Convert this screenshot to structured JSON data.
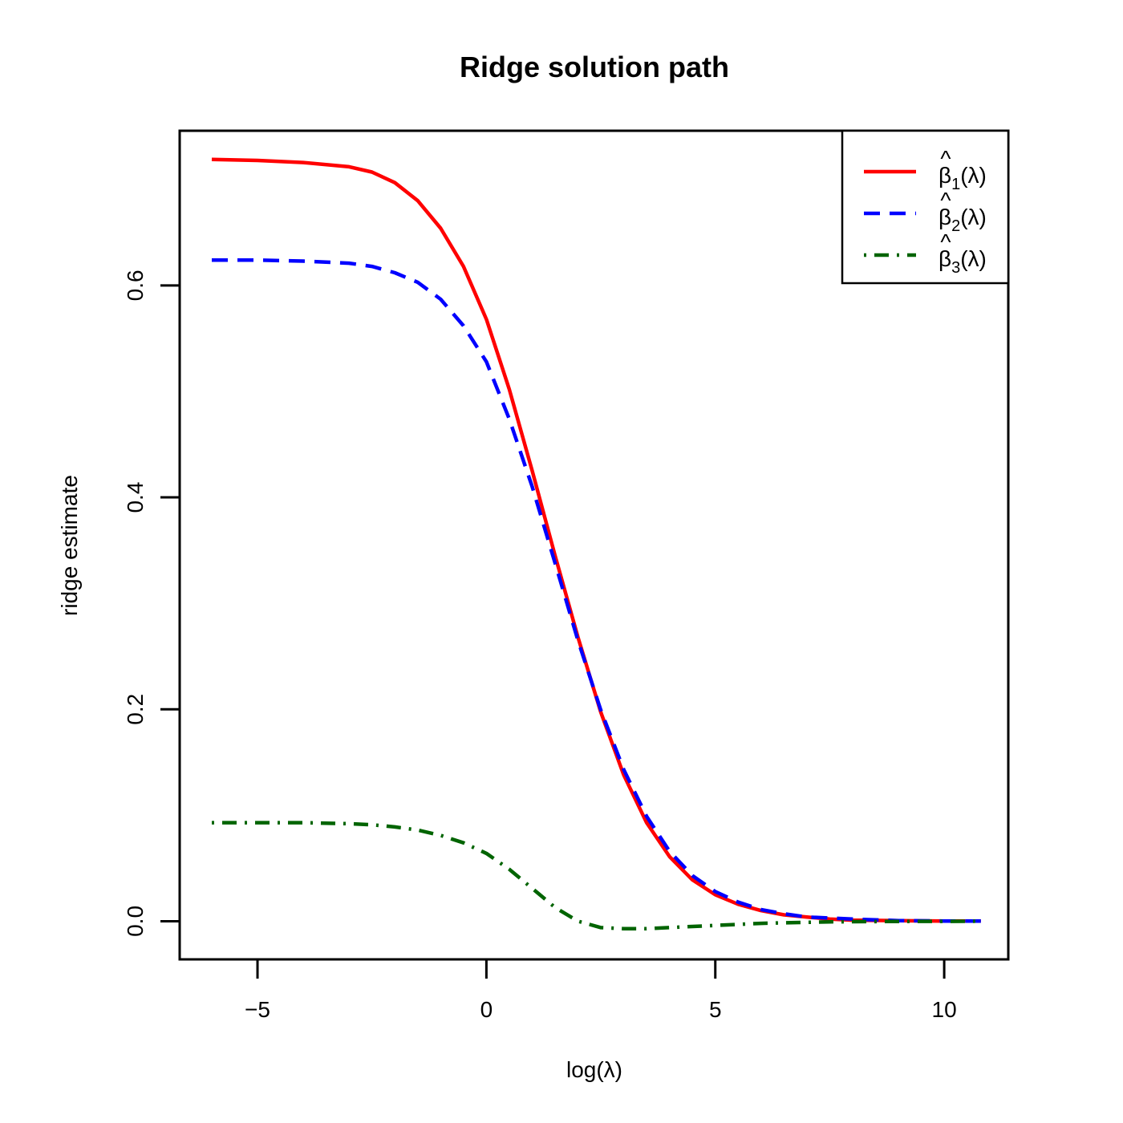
{
  "chart_data": {
    "type": "line",
    "title": "Ridge solution path",
    "xlabel": "log(λ)",
    "ylabel": "ridge estimate",
    "xlim": [
      -6.7,
      11.4
    ],
    "ylim": [
      -0.036,
      0.746
    ],
    "xticks": [
      -5,
      0,
      5,
      10
    ],
    "xtick_labels": [
      "−5",
      "0",
      "5",
      "10"
    ],
    "yticks": [
      0.0,
      0.2,
      0.4,
      0.6
    ],
    "ytick_labels": [
      "0.0",
      "0.2",
      "0.4",
      "0.6"
    ],
    "grid": false,
    "legend_position": "top-right",
    "series": [
      {
        "name": "β̂1(λ)",
        "legend_sub": "1",
        "color": "#ff0000",
        "style": "solid",
        "x": [
          -6.0,
          -5.0,
          -4.0,
          -3.0,
          -2.5,
          -2.0,
          -1.5,
          -1.0,
          -0.5,
          0.0,
          0.5,
          1.0,
          1.5,
          2.0,
          2.5,
          3.0,
          3.5,
          4.0,
          4.5,
          5.0,
          5.5,
          6.0,
          6.5,
          7.0,
          7.5,
          8.0,
          9.0,
          10.0,
          10.8
        ],
        "y": [
          0.719,
          0.718,
          0.716,
          0.712,
          0.707,
          0.697,
          0.68,
          0.654,
          0.618,
          0.568,
          0.502,
          0.425,
          0.345,
          0.268,
          0.197,
          0.138,
          0.093,
          0.061,
          0.039,
          0.025,
          0.016,
          0.01,
          0.006,
          0.004,
          0.002,
          0.001,
          0.0005,
          0.0002,
          0.0001
        ]
      },
      {
        "name": "β̂2(λ)",
        "legend_sub": "2",
        "color": "#0000ff",
        "style": "dashed",
        "x": [
          -6.0,
          -5.0,
          -4.0,
          -3.0,
          -2.5,
          -2.0,
          -1.5,
          -1.0,
          -0.5,
          0.0,
          0.5,
          1.0,
          1.5,
          2.0,
          2.5,
          3.0,
          3.5,
          4.0,
          4.5,
          5.0,
          5.5,
          6.0,
          6.5,
          7.0,
          7.5,
          8.0,
          9.0,
          10.0,
          10.8
        ],
        "y": [
          0.624,
          0.624,
          0.623,
          0.621,
          0.618,
          0.612,
          0.603,
          0.587,
          0.562,
          0.528,
          0.474,
          0.41,
          0.338,
          0.265,
          0.199,
          0.143,
          0.099,
          0.066,
          0.043,
          0.028,
          0.018,
          0.011,
          0.007,
          0.004,
          0.003,
          0.002,
          0.0006,
          0.0002,
          0.0001
        ]
      },
      {
        "name": "β̂3(λ)",
        "legend_sub": "3",
        "color": "#006400",
        "style": "dotdash",
        "x": [
          -6.0,
          -5.0,
          -4.0,
          -3.0,
          -2.5,
          -2.0,
          -1.5,
          -1.0,
          -0.5,
          0.0,
          0.5,
          1.0,
          1.5,
          2.0,
          2.5,
          3.0,
          3.5,
          4.0,
          4.5,
          5.0,
          5.5,
          6.0,
          6.5,
          7.0,
          7.5,
          8.0,
          9.0,
          10.0,
          10.8
        ],
        "y": [
          0.093,
          0.093,
          0.093,
          0.092,
          0.091,
          0.089,
          0.086,
          0.081,
          0.074,
          0.064,
          0.049,
          0.031,
          0.013,
          0.0,
          -0.006,
          -0.007,
          -0.007,
          -0.006,
          -0.005,
          -0.004,
          -0.003,
          -0.002,
          -0.0015,
          -0.001,
          -0.0006,
          -0.0004,
          -0.0002,
          -0.0001,
          0.0
        ]
      }
    ]
  }
}
